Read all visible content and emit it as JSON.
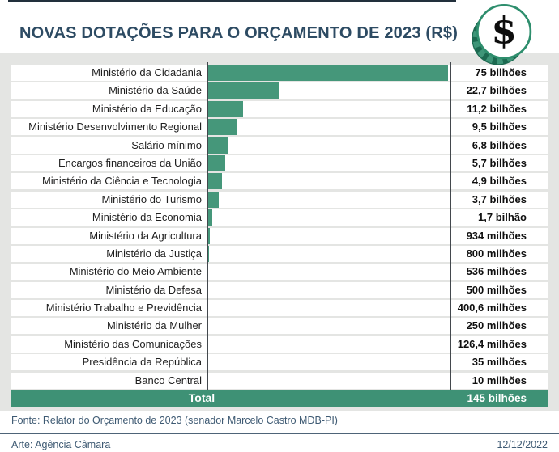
{
  "header": {
    "title": "NOVAS DOTAÇÕES PARA O ORÇAMENTO DE 2023 (R$)",
    "icon": "dollar-coin"
  },
  "colors": {
    "bar_green": "#45977a",
    "total_green": "#3e9175",
    "coin_dark_green": "#1c6950",
    "coin_ring_green": "#2e8e6d",
    "panel_gray": "#e4e5e3",
    "title_blue": "#2d4b63",
    "axis_line": "#43484d",
    "footer_text": "#3e5a73"
  },
  "chart_data": {
    "type": "bar",
    "orientation": "horizontal",
    "unit": "R$",
    "title": "NOVAS DOTAÇÕES PARA O ORÇAMENTO DE 2023 (R$)",
    "max_value_billions": 75,
    "grid": false,
    "categories": [
      "Ministério da Cidadania",
      "Ministério da Saúde",
      "Ministério da Educação",
      "Ministério Desenvolvimento Regional",
      "Salário mínimo",
      "Encargos financeiros da União",
      "Ministério da Ciência e Tecnologia",
      "Ministério do Turismo",
      "Ministério da Economia",
      "Ministério da Agricultura",
      "Ministério da Justiça",
      "Ministério do Meio Ambiente",
      "Ministério da Defesa",
      "Ministério Trabalho e Previdência",
      "Ministério da Mulher",
      "Ministério das Comunicações",
      "Presidência da República",
      "Banco Central"
    ],
    "values_billions": [
      75,
      22.7,
      11.2,
      9.5,
      6.8,
      5.7,
      4.9,
      3.7,
      1.7,
      0.934,
      0.8,
      0.536,
      0.5,
      0.4006,
      0.25,
      0.1264,
      0.035,
      0.01
    ],
    "value_labels": [
      "75 bilhões",
      "22,7 bilhões",
      "11,2 bilhões",
      "9,5 bilhões",
      "6,8 bilhões",
      "5,7 bilhões",
      "4,9 bilhões",
      "3,7 bilhões",
      "1,7 bilhão",
      "934 milhões",
      "800 milhões",
      "536 milhões",
      "500 milhões",
      "400,6 milhões",
      "250 milhões",
      "126,4 milhões",
      "35 milhões",
      "10 milhões"
    ],
    "total": {
      "label": "Total",
      "value_billions": 145,
      "value_label": "145 bilhões"
    }
  },
  "footer": {
    "source": "Fonte: Relator do Orçamento de 2023 (senador Marcelo Castro MDB-PI)",
    "credit": "Arte: Agência Câmara",
    "date": "12/12/2022"
  }
}
